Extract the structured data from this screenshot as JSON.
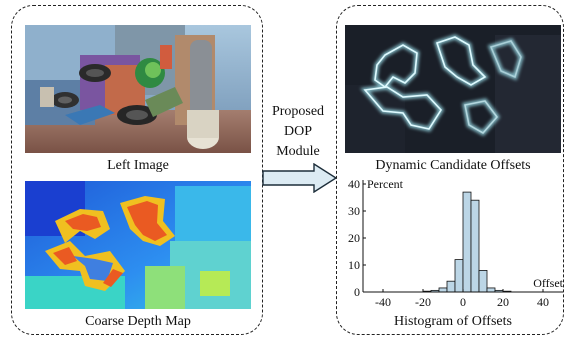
{
  "left_panel": {
    "top_caption": "Left Image",
    "bottom_caption": "Coarse Depth Map"
  },
  "module": {
    "line1": "Proposed",
    "line2": "DOP",
    "line3": "Module"
  },
  "right_panel": {
    "top_caption": "Dynamic Candidate Offsets",
    "bottom_caption": "Histogram of Offsets"
  },
  "chart_data": {
    "type": "bar",
    "title": "",
    "ylabel": "Percent",
    "xlabel": "Offset",
    "ylim": [
      0,
      40
    ],
    "xlim": [
      -50,
      50
    ],
    "yticks": [
      0,
      10,
      20,
      30,
      40
    ],
    "xticks": [
      -40,
      -20,
      0,
      20,
      40
    ],
    "bin_width": 4,
    "bins": [
      {
        "center": -18,
        "value": 0.3
      },
      {
        "center": -14,
        "value": 0.6
      },
      {
        "center": -10,
        "value": 1.5
      },
      {
        "center": -6,
        "value": 4
      },
      {
        "center": -2,
        "value": 12
      },
      {
        "center": 2,
        "value": 37
      },
      {
        "center": 6,
        "value": 34
      },
      {
        "center": 10,
        "value": 8
      },
      {
        "center": 14,
        "value": 1.5
      },
      {
        "center": 18,
        "value": 0.6
      },
      {
        "center": 22,
        "value": 0.3
      }
    ],
    "grid": false,
    "bar_color": "#bcd6e6"
  }
}
